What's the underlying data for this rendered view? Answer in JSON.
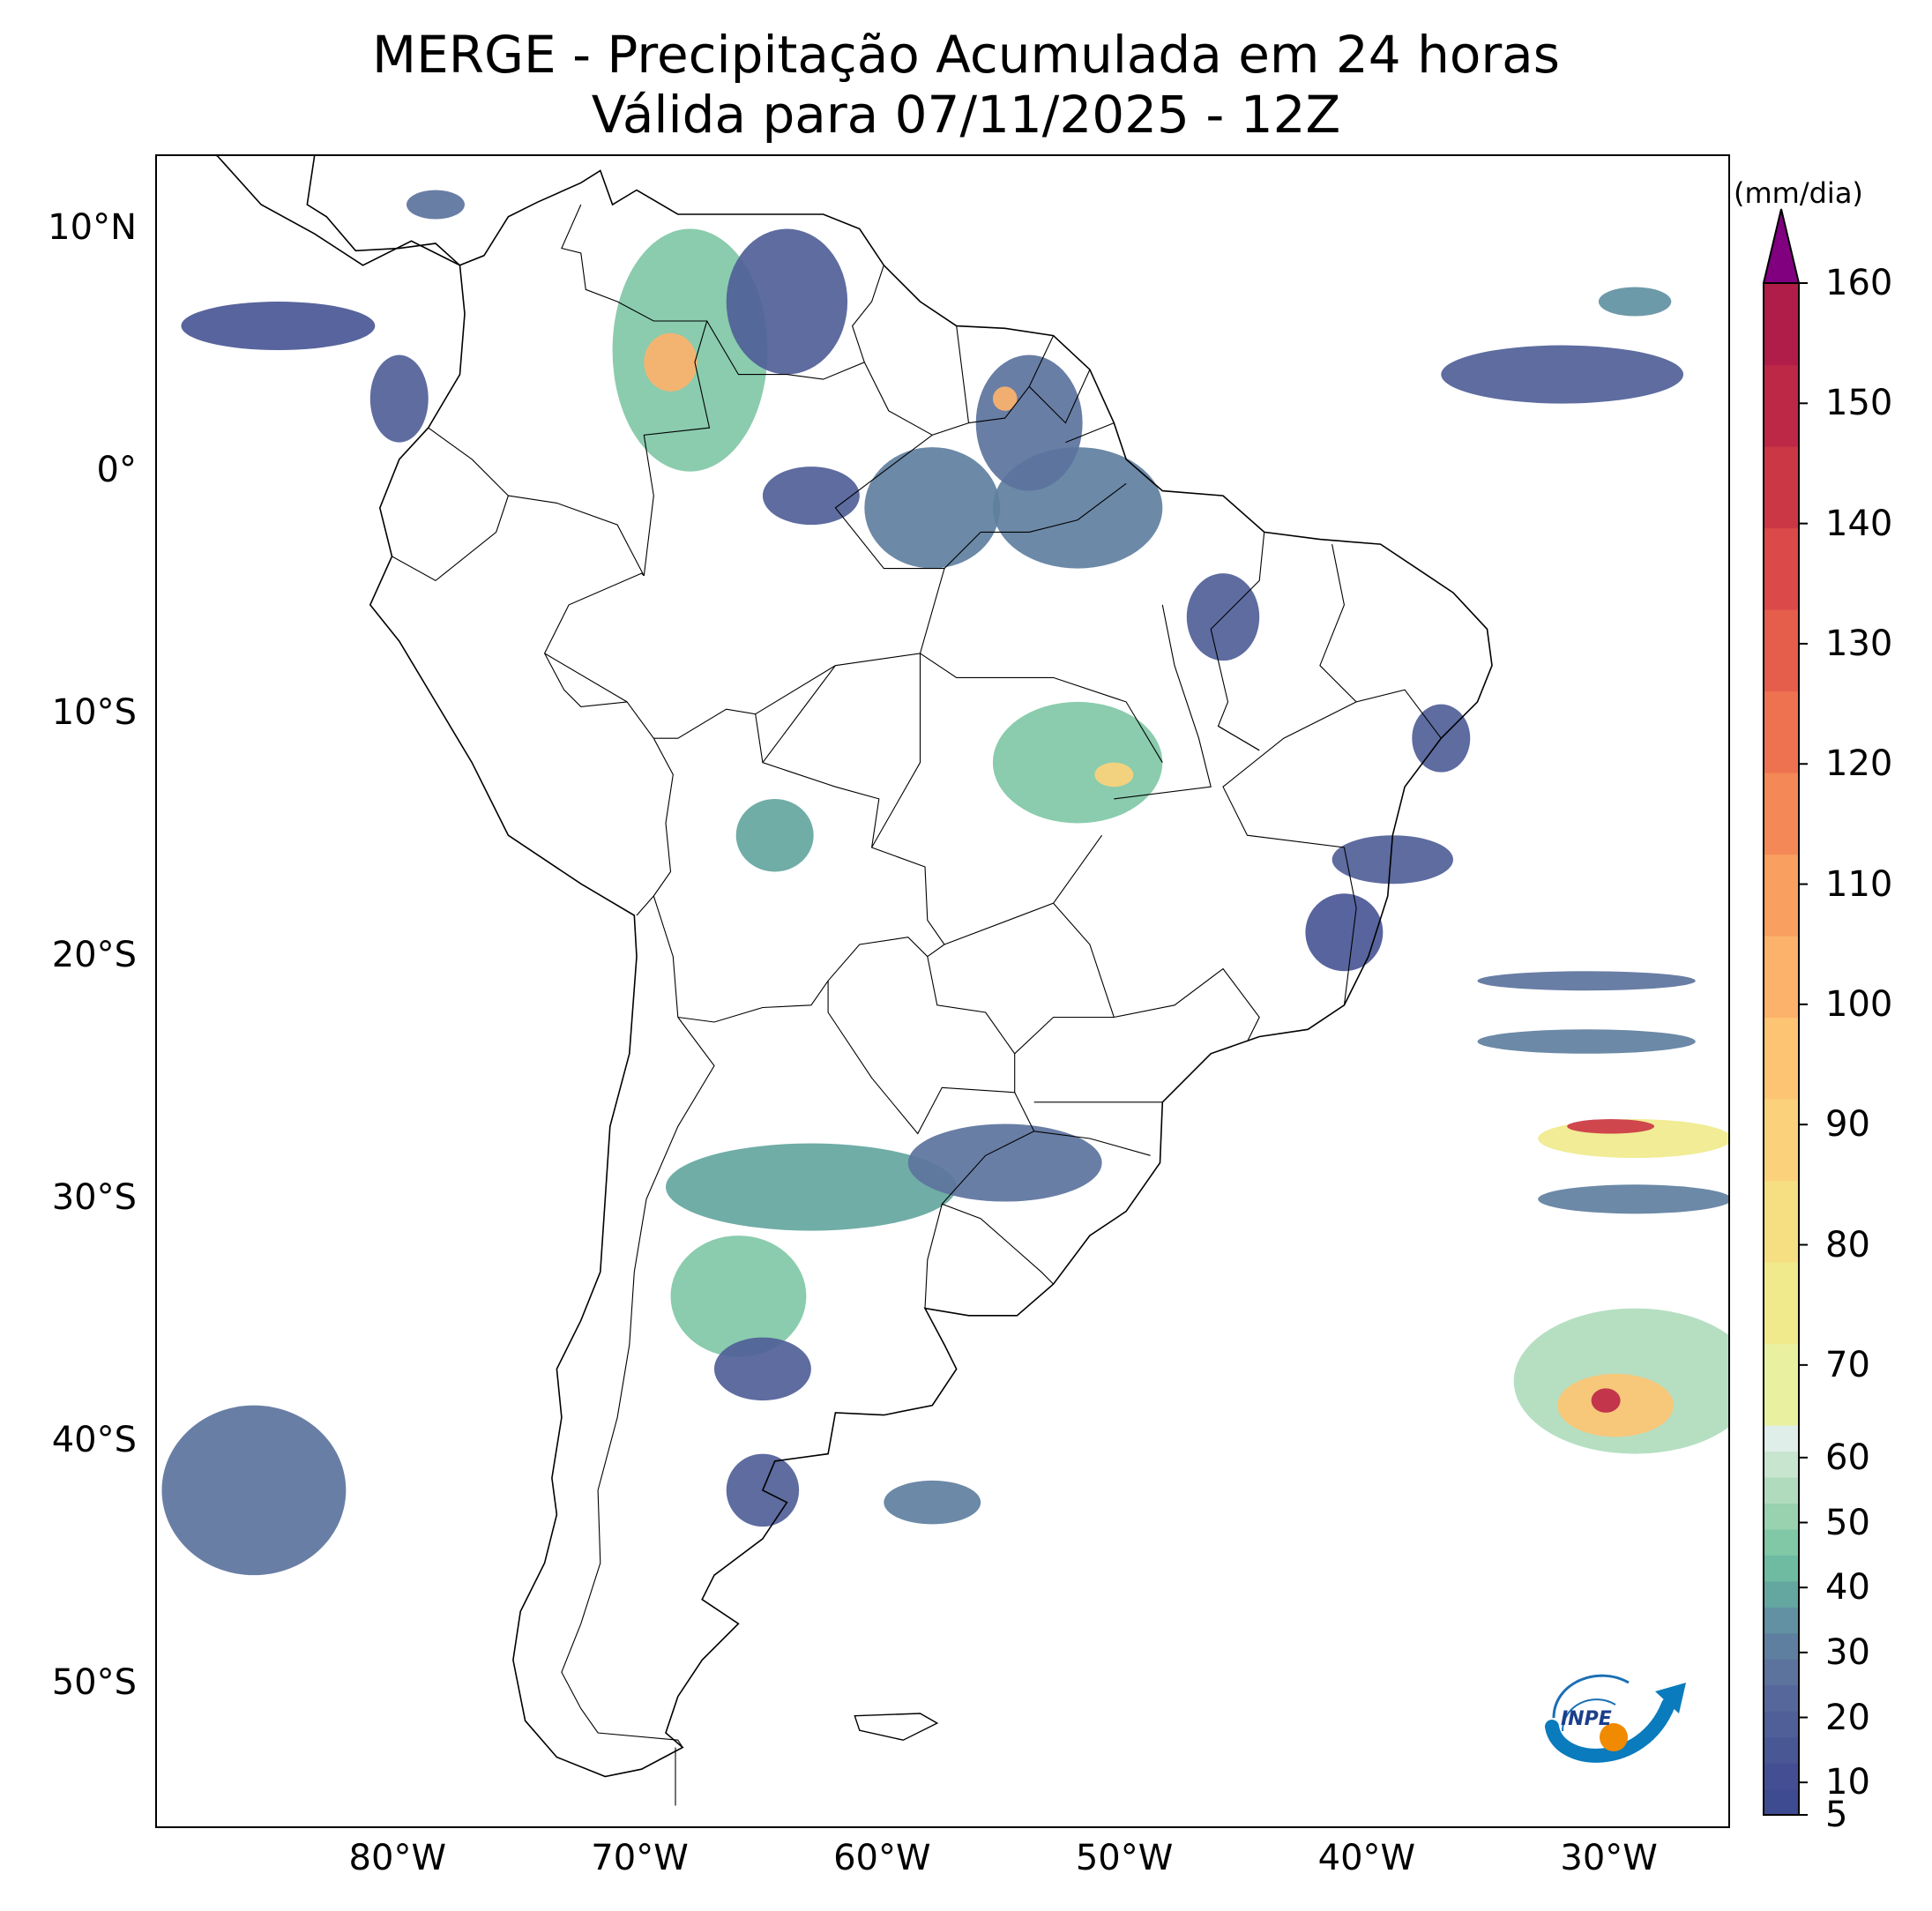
{
  "header": {
    "title": "MERGE - Precipitação Acumulada em 24 horas",
    "subtitle": "Válida para 07/11/2025 - 12Z"
  },
  "map": {
    "extent": {
      "lon_min": -90,
      "lon_max": -25,
      "lat_min": -56,
      "lat_max": 13
    },
    "lat_ticks": [
      {
        "value": 10,
        "label": "10°N"
      },
      {
        "value": 0,
        "label": "0°"
      },
      {
        "value": -10,
        "label": "10°S"
      },
      {
        "value": -20,
        "label": "20°S"
      },
      {
        "value": -30,
        "label": "30°S"
      },
      {
        "value": -40,
        "label": "40°S"
      },
      {
        "value": -50,
        "label": "50°S"
      }
    ],
    "lon_ticks": [
      {
        "value": -80,
        "label": "80°W"
      },
      {
        "value": -70,
        "label": "70°W"
      },
      {
        "value": -60,
        "label": "60°W"
      },
      {
        "value": -50,
        "label": "50°W"
      },
      {
        "value": -40,
        "label": "40°W"
      },
      {
        "value": -30,
        "label": "30°W"
      }
    ],
    "rain_areas": [
      {
        "lon": -68,
        "lat": 5,
        "rx": 3.2,
        "ry": 5,
        "value": 45
      },
      {
        "lon": -68.8,
        "lat": 4.5,
        "rx": 1.1,
        "ry": 1.2,
        "value": 100
      },
      {
        "lon": -64,
        "lat": 7,
        "rx": 2.5,
        "ry": 3,
        "value": 20
      },
      {
        "lon": -58,
        "lat": -1.5,
        "rx": 2.8,
        "ry": 2.5,
        "value": 30
      },
      {
        "lon": -52,
        "lat": -1.5,
        "rx": 3.5,
        "ry": 2.5,
        "value": 30
      },
      {
        "lon": -54,
        "lat": 2,
        "rx": 2.2,
        "ry": 2.8,
        "value": 25
      },
      {
        "lon": -55,
        "lat": 3,
        "rx": 0.5,
        "ry": 0.5,
        "value": 100
      },
      {
        "lon": -63,
        "lat": -1,
        "rx": 2,
        "ry": 1.2,
        "value": 18
      },
      {
        "lon": -46,
        "lat": -6,
        "rx": 1.5,
        "ry": 1.8,
        "value": 20
      },
      {
        "lon": -52,
        "lat": -12,
        "rx": 3.5,
        "ry": 2.5,
        "value": 45
      },
      {
        "lon": -50.5,
        "lat": -12.5,
        "rx": 0.8,
        "ry": 0.5,
        "value": 90
      },
      {
        "lon": -64.5,
        "lat": -15,
        "rx": 1.6,
        "ry": 1.5,
        "value": 40
      },
      {
        "lon": -37,
        "lat": -11,
        "rx": 1.2,
        "ry": 1.4,
        "value": 18
      },
      {
        "lon": -39,
        "lat": -16,
        "rx": 2.5,
        "ry": 1,
        "value": 20
      },
      {
        "lon": -41,
        "lat": -19,
        "rx": 1.6,
        "ry": 1.6,
        "value": 15
      },
      {
        "lon": -63,
        "lat": -29.5,
        "rx": 6,
        "ry": 1.8,
        "value": 40
      },
      {
        "lon": -55,
        "lat": -28.5,
        "rx": 4,
        "ry": 1.6,
        "value": 25
      },
      {
        "lon": -66,
        "lat": -34,
        "rx": 2.8,
        "ry": 2.5,
        "value": 45
      },
      {
        "lon": -65,
        "lat": -37,
        "rx": 2,
        "ry": 1.3,
        "value": 20
      },
      {
        "lon": -65,
        "lat": -42,
        "rx": 1.5,
        "ry": 1.5,
        "value": 20
      },
      {
        "lon": -58,
        "lat": -42.5,
        "rx": 2,
        "ry": 0.9,
        "value": 30
      },
      {
        "lon": -86,
        "lat": -42,
        "rx": 3.8,
        "ry": 3.5,
        "value": 25
      },
      {
        "lon": -29,
        "lat": -37.5,
        "rx": 5,
        "ry": 3,
        "value": 55
      },
      {
        "lon": -29.8,
        "lat": -38.5,
        "rx": 2.4,
        "ry": 1.3,
        "value": 95
      },
      {
        "lon": -30.2,
        "lat": -38.3,
        "rx": 0.6,
        "ry": 0.5,
        "value": 150
      },
      {
        "lon": -29,
        "lat": -27.5,
        "rx": 4,
        "ry": 0.8,
        "value": 75
      },
      {
        "lon": -30,
        "lat": -27,
        "rx": 1.8,
        "ry": 0.3,
        "value": 140
      },
      {
        "lon": -31,
        "lat": -23.5,
        "rx": 4.5,
        "ry": 0.5,
        "value": 30
      },
      {
        "lon": -31,
        "lat": -21,
        "rx": 4.5,
        "ry": 0.4,
        "value": 25
      },
      {
        "lon": -29,
        "lat": -30,
        "rx": 4,
        "ry": 0.6,
        "value": 30
      },
      {
        "lon": -32,
        "lat": 4,
        "rx": 5,
        "ry": 1.2,
        "value": 20
      },
      {
        "lon": -29,
        "lat": 7,
        "rx": 1.5,
        "ry": 0.6,
        "value": 35
      },
      {
        "lon": -85,
        "lat": 6,
        "rx": 4,
        "ry": 1,
        "value": 15
      },
      {
        "lon": -80,
        "lat": 3,
        "rx": 1.2,
        "ry": 1.8,
        "value": 20
      },
      {
        "lon": -78.5,
        "lat": 11,
        "rx": 1.2,
        "ry": 0.6,
        "value": 25
      }
    ]
  },
  "colorbar": {
    "unit": "(mm/dia)",
    "min": 5,
    "max": 160,
    "tick_labels": [
      "5",
      "10",
      "20",
      "30",
      "40",
      "50",
      "60",
      "70",
      "80",
      "90",
      "100",
      "110",
      "120",
      "130",
      "140",
      "150",
      "160"
    ],
    "tick_values": [
      5,
      10,
      20,
      30,
      40,
      50,
      60,
      70,
      80,
      90,
      100,
      110,
      120,
      130,
      140,
      150,
      160
    ],
    "colors": [
      "#3f4b91",
      "#444f93",
      "#4a5795",
      "#505f98",
      "#56689b",
      "#5c739d",
      "#5f7fa0",
      "#6191a2",
      "#64a6a0",
      "#6ebba2",
      "#80c8a6",
      "#98d2ae",
      "#b0dcbd",
      "#c8e5cf",
      "#dfeee8",
      "#e9f1a0",
      "#f0ea8c",
      "#f6de82",
      "#fbd27b",
      "#fdc474",
      "#fcb26b",
      "#f99f60",
      "#f48856",
      "#ee7250",
      "#e55d4b",
      "#db4948",
      "#cc3745",
      "#bd2847",
      "#b01d48"
    ],
    "extend_color": "#800080",
    "break_value": 65
  },
  "logo": {
    "label": "INPE"
  }
}
